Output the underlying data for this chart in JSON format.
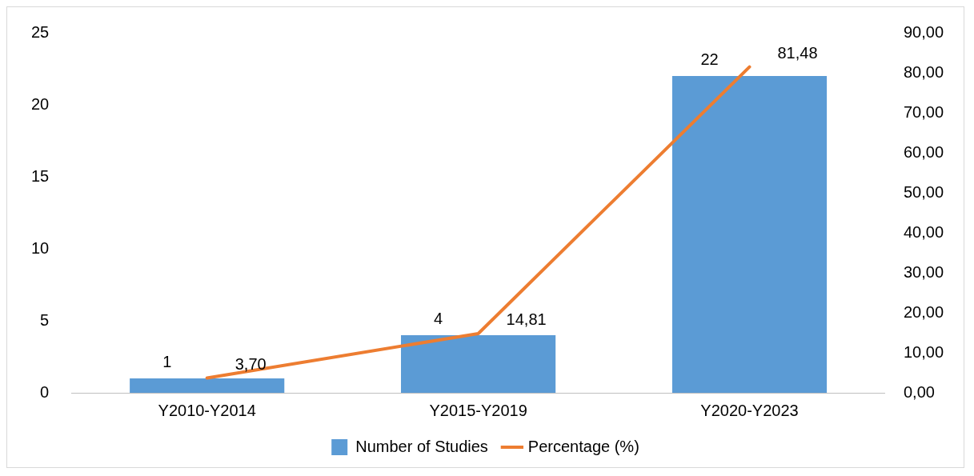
{
  "chart_data": {
    "type": "bar",
    "categories": [
      "Y2010-Y2014",
      "Y2015-Y2019",
      "Y2020-Y2023"
    ],
    "series": [
      {
        "name": "Number of Studies",
        "color": "#5b9bd5",
        "values": [
          1,
          4,
          22
        ],
        "data_labels": true
      },
      {
        "name": "Percentage (%)",
        "type": "line",
        "axis": "y2",
        "color": "#ed7d31",
        "values": [
          3.7,
          14.81,
          81.48
        ],
        "value_labels": [
          "3,70",
          "14,81",
          "81,48"
        ],
        "marker": "none"
      }
    ],
    "ylim": [
      0,
      25
    ],
    "yticks": [
      0,
      5,
      10,
      15,
      20,
      25
    ],
    "y2lim": [
      0,
      90
    ],
    "y2ticks": [
      {
        "value": 0,
        "label": "0,00"
      },
      {
        "value": 10,
        "label": "10,00"
      },
      {
        "value": 20,
        "label": "20,00"
      },
      {
        "value": 30,
        "label": "30,00"
      },
      {
        "value": 40,
        "label": "40,00"
      },
      {
        "value": 50,
        "label": "50,00"
      },
      {
        "value": 60,
        "label": "60,00"
      },
      {
        "value": 70,
        "label": "70,00"
      },
      {
        "value": 80,
        "label": "80,00"
      },
      {
        "value": 90,
        "label": "90,00"
      }
    ],
    "grid": false,
    "legend": "bottom"
  }
}
